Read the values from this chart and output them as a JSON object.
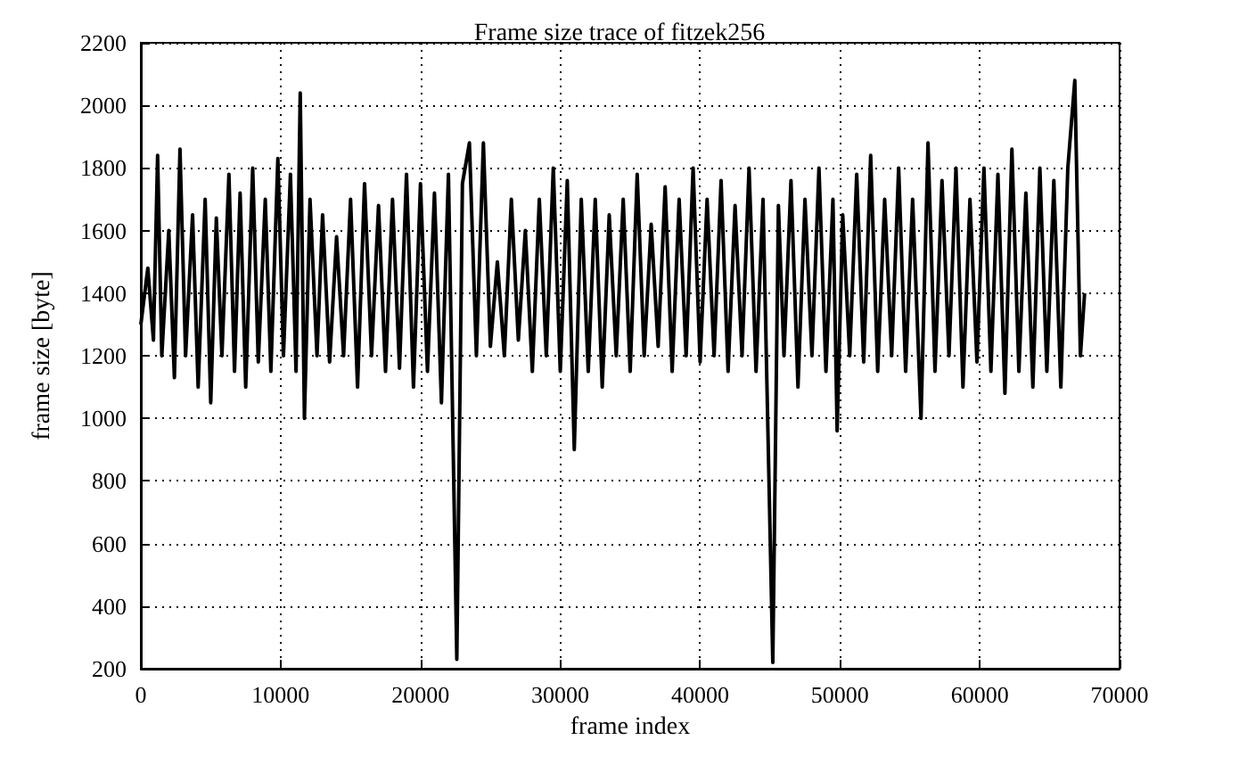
{
  "chart_data": {
    "type": "line",
    "title": "Frame size trace of fitzek256",
    "xlabel": "frame index",
    "ylabel": "frame size [byte]",
    "x": [
      0,
      500,
      900,
      1200,
      1500,
      2000,
      2400,
      2800,
      3200,
      3700,
      4100,
      4600,
      5000,
      5400,
      5800,
      6300,
      6700,
      7100,
      7500,
      8000,
      8400,
      8900,
      9300,
      9800,
      10200,
      10700,
      11100,
      11400,
      11700,
      12100,
      12600,
      13000,
      13500,
      14000,
      14500,
      15000,
      15500,
      16000,
      16500,
      17000,
      17500,
      18000,
      18500,
      19000,
      19500,
      20000,
      20500,
      21000,
      21500,
      22000,
      22600,
      23000,
      23500,
      24000,
      24500,
      25000,
      25500,
      26000,
      26500,
      27000,
      27500,
      28000,
      28500,
      29000,
      29500,
      30000,
      30500,
      31000,
      31500,
      32000,
      32500,
      33000,
      33500,
      34000,
      34500,
      35000,
      35500,
      36000,
      36500,
      37000,
      37500,
      38000,
      38500,
      39000,
      39500,
      40000,
      40500,
      41000,
      41500,
      42000,
      42500,
      43000,
      43500,
      44000,
      44500,
      45200,
      45600,
      46000,
      46500,
      47000,
      47500,
      48000,
      48500,
      49000,
      49500,
      49800,
      50200,
      50700,
      51200,
      51700,
      52200,
      52700,
      53200,
      53700,
      54200,
      54700,
      55200,
      55800,
      56300,
      56800,
      57300,
      57800,
      58300,
      58800,
      59300,
      59800,
      60300,
      60800,
      61300,
      61800,
      62300,
      62800,
      63300,
      63800,
      64300,
      64800,
      65300,
      65800,
      66300,
      66800,
      67200,
      67500
    ],
    "series": [
      {
        "color": "#000000",
        "values": [
          1300,
          1480,
          1250,
          1840,
          1200,
          1600,
          1130,
          1860,
          1200,
          1650,
          1100,
          1700,
          1050,
          1640,
          1200,
          1780,
          1150,
          1720,
          1100,
          1800,
          1180,
          1700,
          1150,
          1830,
          1200,
          1780,
          1150,
          2040,
          1000,
          1700,
          1200,
          1650,
          1180,
          1580,
          1200,
          1700,
          1100,
          1750,
          1200,
          1680,
          1150,
          1700,
          1160,
          1780,
          1100,
          1750,
          1150,
          1720,
          1050,
          1780,
          230,
          1750,
          1880,
          1200,
          1880,
          1230,
          1500,
          1200,
          1700,
          1250,
          1600,
          1150,
          1700,
          1200,
          1800,
          1150,
          1760,
          900,
          1700,
          1150,
          1700,
          1100,
          1650,
          1200,
          1700,
          1150,
          1780,
          1200,
          1620,
          1230,
          1740,
          1150,
          1700,
          1200,
          1800,
          1180,
          1700,
          1200,
          1760,
          1150,
          1680,
          1200,
          1800,
          1150,
          1700,
          220,
          1680,
          1200,
          1760,
          1100,
          1700,
          1200,
          1800,
          1150,
          1700,
          960,
          1650,
          1200,
          1780,
          1180,
          1840,
          1150,
          1700,
          1200,
          1800,
          1150,
          1700,
          1000,
          1880,
          1150,
          1760,
          1200,
          1800,
          1100,
          1700,
          1180,
          1800,
          1150,
          1780,
          1080,
          1860,
          1150,
          1720,
          1100,
          1800,
          1150,
          1760,
          1100,
          1800,
          2080,
          1200,
          1400
        ]
      }
    ],
    "xlim": [
      0,
      70000
    ],
    "xticks": [
      0,
      10000,
      20000,
      30000,
      40000,
      50000,
      60000,
      70000
    ],
    "ylim": [
      200,
      2200
    ],
    "yticks": [
      200,
      400,
      600,
      800,
      1000,
      1200,
      1400,
      1600,
      1800,
      2000,
      2200
    ],
    "grid": true,
    "line_style": "solid",
    "marker": "none"
  }
}
